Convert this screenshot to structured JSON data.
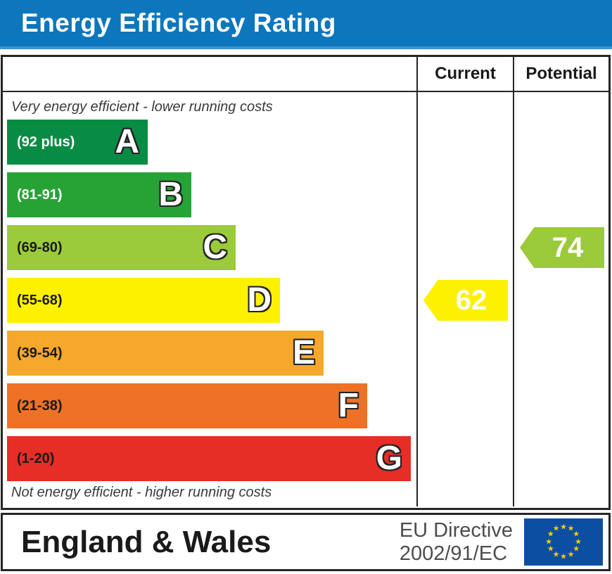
{
  "chart_data": {
    "type": "bar",
    "orientation": "horizontal",
    "title": "Energy Efficiency Rating",
    "categories": [
      "A",
      "B",
      "C",
      "D",
      "E",
      "F",
      "G"
    ],
    "ranges": [
      "92 plus",
      "81-91",
      "69-80",
      "55-68",
      "39-54",
      "21-38",
      "1-20"
    ],
    "band_colors": [
      "#088c44",
      "#27a336",
      "#9bca3b",
      "#fdf100",
      "#f5a82c",
      "#ee7125",
      "#e62d26"
    ],
    "scale_min": 1,
    "scale_max": 100,
    "markers": [
      {
        "label": "Current",
        "value": 62,
        "band": "D"
      },
      {
        "label": "Potential",
        "value": 74,
        "band": "C"
      }
    ],
    "annotations": [
      "Very energy efficient - lower running costs",
      "Not energy efficient - higher running costs"
    ],
    "legend_position": "none",
    "grid": false
  },
  "header": {
    "title": "Energy Efficiency Rating",
    "bg": "#0d76bc",
    "text_color": "#ffffff"
  },
  "table": {
    "columns": {
      "current": "Current",
      "potential": "Potential"
    },
    "captions": {
      "top": "Very energy efficient - lower running costs",
      "bottom": "Not energy efficient - higher running costs"
    },
    "bands": [
      {
        "letter": "A",
        "range": "(92 plus)",
        "color": "#088c44",
        "label_color": "#ffffff"
      },
      {
        "letter": "B",
        "range": "(81-91)",
        "color": "#27a336",
        "label_color": "#ffffff"
      },
      {
        "letter": "C",
        "range": "(69-80)",
        "color": "#9bca3b",
        "label_color": "#1a1a1a"
      },
      {
        "letter": "D",
        "range": "(55-68)",
        "color": "#fdf100",
        "label_color": "#1a1a1a"
      },
      {
        "letter": "E",
        "range": "(39-54)",
        "color": "#f5a82c",
        "label_color": "#1a1a1a"
      },
      {
        "letter": "F",
        "range": "(21-38)",
        "color": "#ee7125",
        "label_color": "#1a1a1a"
      },
      {
        "letter": "G",
        "range": "(1-20)",
        "color": "#e62d26",
        "label_color": "#1a1a1a"
      }
    ]
  },
  "current": {
    "value": "62",
    "band": "D",
    "color": "#fdf100",
    "text_color": "#ffffff"
  },
  "potential": {
    "value": "74",
    "band": "C",
    "color": "#9bca3b",
    "text_color": "#ffffff"
  },
  "footer": {
    "region": "England & Wales",
    "directive_line1": "EU Directive",
    "directive_line2": "2002/91/EC",
    "flag_bg": "#0b4ea2",
    "flag_star_color": "#ffcc00"
  }
}
